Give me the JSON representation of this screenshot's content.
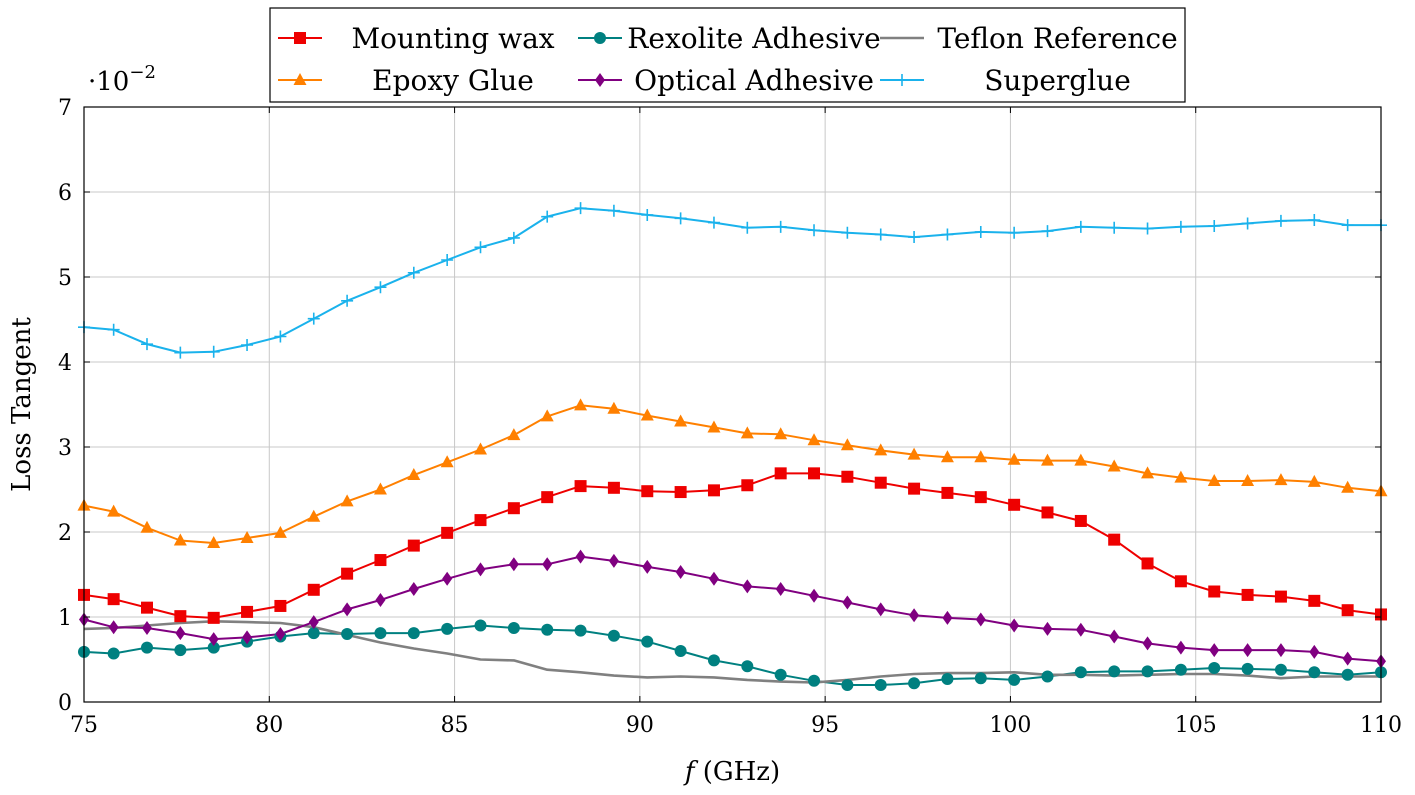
{
  "chart_data": {
    "type": "line",
    "xlabel_italic": "f",
    "xlabel_rest": " (GHz)",
    "ylabel": "Loss Tangent",
    "y_multiplier_base": "·10",
    "y_multiplier_exp": "−2",
    "xlim": [
      75,
      110
    ],
    "ylim": [
      0,
      7
    ],
    "x_ticks": [
      75,
      80,
      85,
      90,
      95,
      100,
      105,
      110
    ],
    "y_ticks": [
      0,
      1,
      2,
      3,
      4,
      5,
      6,
      7
    ],
    "grid": true,
    "legend_position": "top",
    "legend_columns": 3,
    "series": [
      {
        "name": "Mounting wax",
        "color": "#ee0000",
        "marker": "square",
        "x": [
          75.0,
          75.8,
          76.7,
          77.6,
          78.5,
          79.4,
          80.3,
          81.2,
          82.1,
          83.0,
          83.9,
          84.8,
          85.7,
          86.6,
          87.5,
          88.4,
          89.3,
          90.2,
          91.1,
          92.0,
          92.9,
          93.8,
          94.7,
          95.6,
          96.5,
          97.4,
          98.3,
          99.2,
          100.1,
          101.0,
          101.9,
          102.8,
          103.7,
          104.6,
          105.5,
          106.4,
          107.3,
          108.2,
          109.1,
          110.0
        ],
        "y": [
          1.26,
          1.21,
          1.11,
          1.01,
          0.99,
          1.06,
          1.13,
          1.32,
          1.51,
          1.67,
          1.84,
          1.99,
          2.14,
          2.28,
          2.41,
          2.54,
          2.52,
          2.48,
          2.47,
          2.49,
          2.55,
          2.69,
          2.69,
          2.65,
          2.58,
          2.51,
          2.46,
          2.41,
          2.32,
          2.23,
          2.13,
          1.91,
          1.63,
          1.42,
          1.3,
          1.26,
          1.24,
          1.19,
          1.08,
          1.03
        ]
      },
      {
        "name": "Rexolite Adhesive",
        "color": "#008080",
        "marker": "circle",
        "x": [
          75.0,
          75.8,
          76.7,
          77.6,
          78.5,
          79.4,
          80.3,
          81.2,
          82.1,
          83.0,
          83.9,
          84.8,
          85.7,
          86.6,
          87.5,
          88.4,
          89.3,
          90.2,
          91.1,
          92.0,
          92.9,
          93.8,
          94.7,
          95.6,
          96.5,
          97.4,
          98.3,
          99.2,
          100.1,
          101.0,
          101.9,
          102.8,
          103.7,
          104.6,
          105.5,
          106.4,
          107.3,
          108.2,
          109.1,
          110.0
        ],
        "y": [
          0.59,
          0.57,
          0.64,
          0.61,
          0.64,
          0.71,
          0.77,
          0.81,
          0.8,
          0.81,
          0.81,
          0.86,
          0.9,
          0.87,
          0.85,
          0.84,
          0.78,
          0.71,
          0.6,
          0.49,
          0.42,
          0.32,
          0.25,
          0.2,
          0.2,
          0.22,
          0.27,
          0.28,
          0.26,
          0.3,
          0.35,
          0.36,
          0.36,
          0.38,
          0.4,
          0.39,
          0.38,
          0.35,
          0.32,
          0.35
        ]
      },
      {
        "name": "Teflon Reference",
        "color": "#808080",
        "marker": "none",
        "x": [
          75.0,
          75.8,
          76.7,
          77.6,
          78.5,
          79.4,
          80.3,
          81.2,
          82.1,
          83.0,
          83.9,
          84.8,
          85.7,
          86.6,
          87.5,
          88.4,
          89.3,
          90.2,
          91.1,
          92.0,
          92.9,
          93.8,
          94.7,
          95.6,
          96.5,
          97.4,
          98.3,
          99.2,
          100.1,
          101.0,
          101.9,
          102.8,
          103.7,
          104.6,
          105.5,
          106.4,
          107.3,
          108.2,
          109.1,
          110.0
        ],
        "y": [
          0.86,
          0.87,
          0.9,
          0.93,
          0.95,
          0.94,
          0.93,
          0.88,
          0.79,
          0.7,
          0.63,
          0.57,
          0.5,
          0.49,
          0.38,
          0.35,
          0.31,
          0.29,
          0.3,
          0.29,
          0.26,
          0.24,
          0.23,
          0.26,
          0.3,
          0.33,
          0.34,
          0.34,
          0.35,
          0.32,
          0.32,
          0.31,
          0.32,
          0.33,
          0.33,
          0.31,
          0.28,
          0.3,
          0.3,
          0.3
        ]
      },
      {
        "name": "Epoxy Glue",
        "color": "#ff8000",
        "marker": "triangle",
        "x": [
          75.0,
          75.8,
          76.7,
          77.6,
          78.5,
          79.4,
          80.3,
          81.2,
          82.1,
          83.0,
          83.9,
          84.8,
          85.7,
          86.6,
          87.5,
          88.4,
          89.3,
          90.2,
          91.1,
          92.0,
          92.9,
          93.8,
          94.7,
          95.6,
          96.5,
          97.4,
          98.3,
          99.2,
          100.1,
          101.0,
          101.9,
          102.8,
          103.7,
          104.6,
          105.5,
          106.4,
          107.3,
          108.2,
          109.1,
          110.0
        ],
        "y": [
          2.31,
          2.24,
          2.05,
          1.9,
          1.87,
          1.93,
          1.99,
          2.18,
          2.36,
          2.5,
          2.67,
          2.82,
          2.97,
          3.14,
          3.36,
          3.49,
          3.45,
          3.37,
          3.3,
          3.23,
          3.16,
          3.15,
          3.08,
          3.02,
          2.96,
          2.91,
          2.88,
          2.88,
          2.85,
          2.84,
          2.84,
          2.77,
          2.69,
          2.64,
          2.6,
          2.6,
          2.61,
          2.59,
          2.52,
          2.48
        ]
      },
      {
        "name": "Optical Adhesive",
        "color": "#800080",
        "marker": "diamond",
        "x": [
          75.0,
          75.8,
          76.7,
          77.6,
          78.5,
          79.4,
          80.3,
          81.2,
          82.1,
          83.0,
          83.9,
          84.8,
          85.7,
          86.6,
          87.5,
          88.4,
          89.3,
          90.2,
          91.1,
          92.0,
          92.9,
          93.8,
          94.7,
          95.6,
          96.5,
          97.4,
          98.3,
          99.2,
          100.1,
          101.0,
          101.9,
          102.8,
          103.7,
          104.6,
          105.5,
          106.4,
          107.3,
          108.2,
          109.1,
          110.0
        ],
        "y": [
          0.97,
          0.88,
          0.87,
          0.81,
          0.74,
          0.76,
          0.8,
          0.94,
          1.09,
          1.2,
          1.33,
          1.45,
          1.56,
          1.62,
          1.62,
          1.71,
          1.66,
          1.59,
          1.53,
          1.45,
          1.36,
          1.33,
          1.25,
          1.17,
          1.09,
          1.02,
          0.99,
          0.97,
          0.9,
          0.86,
          0.85,
          0.77,
          0.69,
          0.64,
          0.61,
          0.61,
          0.61,
          0.59,
          0.51,
          0.48
        ]
      },
      {
        "name": "Superglue",
        "color": "#1ab2ec",
        "marker": "plus",
        "x": [
          75.0,
          75.8,
          76.7,
          77.6,
          78.5,
          79.4,
          80.3,
          81.2,
          82.1,
          83.0,
          83.9,
          84.8,
          85.7,
          86.6,
          87.5,
          88.4,
          89.3,
          90.2,
          91.1,
          92.0,
          92.9,
          93.8,
          94.7,
          95.6,
          96.5,
          97.4,
          98.3,
          99.2,
          100.1,
          101.0,
          101.9,
          102.8,
          103.7,
          104.6,
          105.5,
          106.4,
          107.3,
          108.2,
          109.1,
          110.0
        ],
        "y": [
          4.41,
          4.38,
          4.21,
          4.11,
          4.12,
          4.2,
          4.3,
          4.51,
          4.72,
          4.88,
          5.05,
          5.2,
          5.35,
          5.46,
          5.71,
          5.81,
          5.78,
          5.73,
          5.69,
          5.64,
          5.58,
          5.59,
          5.55,
          5.52,
          5.5,
          5.47,
          5.5,
          5.53,
          5.52,
          5.54,
          5.59,
          5.58,
          5.57,
          5.59,
          5.6,
          5.63,
          5.66,
          5.67,
          5.61,
          5.61
        ]
      }
    ]
  }
}
